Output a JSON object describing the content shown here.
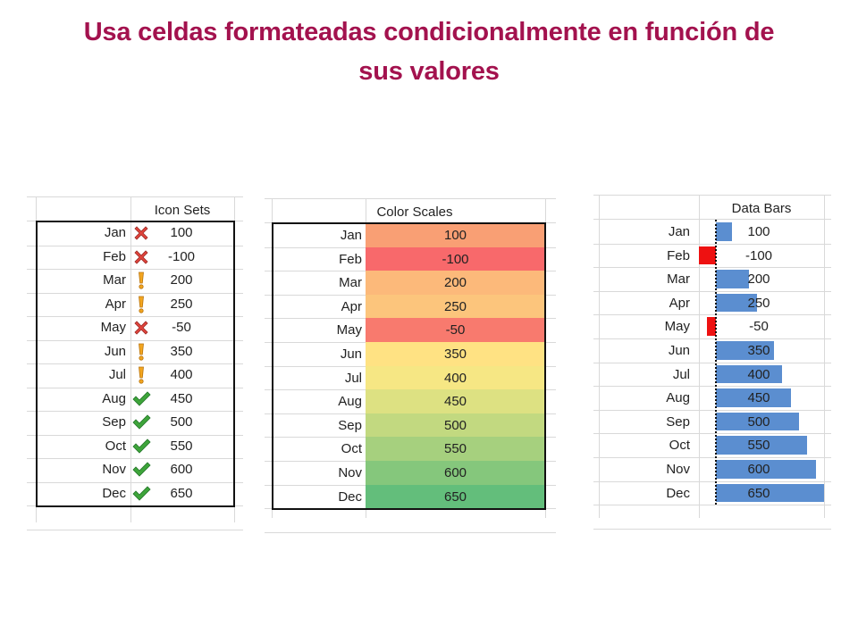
{
  "title": {
    "line1": "Usa celdas formateadas condicionalmente en función de",
    "line2": "sus valores"
  },
  "colors": {
    "title": "#a3124e",
    "bar_positive": "#5b8ed0",
    "bar_negative": "#ee1111",
    "scale_low": "#f8696b",
    "scale_mid": "#ffeb84",
    "scale_high": "#63be7b",
    "icon_x": "#e0443c",
    "icon_warn": "#f2a51f",
    "icon_check": "#3ea53a"
  },
  "icon_sets": {
    "header": "Icon Sets",
    "rows": [
      {
        "month": "Jan",
        "value": "100",
        "icon": "x-icon"
      },
      {
        "month": "Feb",
        "value": "-100",
        "icon": "x-icon"
      },
      {
        "month": "Mar",
        "value": "200",
        "icon": "exclamation-icon"
      },
      {
        "month": "Apr",
        "value": "250",
        "icon": "exclamation-icon"
      },
      {
        "month": "May",
        "value": "-50",
        "icon": "x-icon"
      },
      {
        "month": "Jun",
        "value": "350",
        "icon": "exclamation-icon"
      },
      {
        "month": "Jul",
        "value": "400",
        "icon": "exclamation-icon"
      },
      {
        "month": "Aug",
        "value": "450",
        "icon": "checkmark-icon"
      },
      {
        "month": "Sep",
        "value": "500",
        "icon": "checkmark-icon"
      },
      {
        "month": "Oct",
        "value": "550",
        "icon": "checkmark-icon"
      },
      {
        "month": "Nov",
        "value": "600",
        "icon": "checkmark-icon"
      },
      {
        "month": "Dec",
        "value": "650",
        "icon": "checkmark-icon"
      }
    ]
  },
  "color_scales": {
    "header": "Color Scales",
    "rows": [
      {
        "month": "Jan",
        "value": "100",
        "color": "#f99f74"
      },
      {
        "month": "Feb",
        "value": "-100",
        "color": "#f8696b"
      },
      {
        "month": "Mar",
        "value": "200",
        "color": "#fcb97a"
      },
      {
        "month": "Apr",
        "value": "250",
        "color": "#fcc57c"
      },
      {
        "month": "May",
        "value": "-50",
        "color": "#f87a6e"
      },
      {
        "month": "Jun",
        "value": "350",
        "color": "#ffe283"
      },
      {
        "month": "Jul",
        "value": "400",
        "color": "#f6e784"
      },
      {
        "month": "Aug",
        "value": "450",
        "color": "#dde182"
      },
      {
        "month": "Sep",
        "value": "500",
        "color": "#c2d980"
      },
      {
        "month": "Oct",
        "value": "550",
        "color": "#a6d07e"
      },
      {
        "month": "Nov",
        "value": "600",
        "color": "#85c77c"
      },
      {
        "month": "Dec",
        "value": "650",
        "color": "#63be7b"
      }
    ]
  },
  "data_bars": {
    "header": "Data Bars",
    "min": -100,
    "max": 650,
    "rows": [
      {
        "month": "Jan",
        "value": "100",
        "amount": 100
      },
      {
        "month": "Feb",
        "value": "-100",
        "amount": -100
      },
      {
        "month": "Mar",
        "value": "200",
        "amount": 200
      },
      {
        "month": "Apr",
        "value": "250",
        "amount": 250
      },
      {
        "month": "May",
        "value": "-50",
        "amount": -50
      },
      {
        "month": "Jun",
        "value": "350",
        "amount": 350
      },
      {
        "month": "Jul",
        "value": "400",
        "amount": 400
      },
      {
        "month": "Aug",
        "value": "450",
        "amount": 450
      },
      {
        "month": "Sep",
        "value": "500",
        "amount": 500
      },
      {
        "month": "Oct",
        "value": "550",
        "amount": 550
      },
      {
        "month": "Nov",
        "value": "600",
        "amount": 600
      },
      {
        "month": "Dec",
        "value": "650",
        "amount": 650
      }
    ]
  }
}
